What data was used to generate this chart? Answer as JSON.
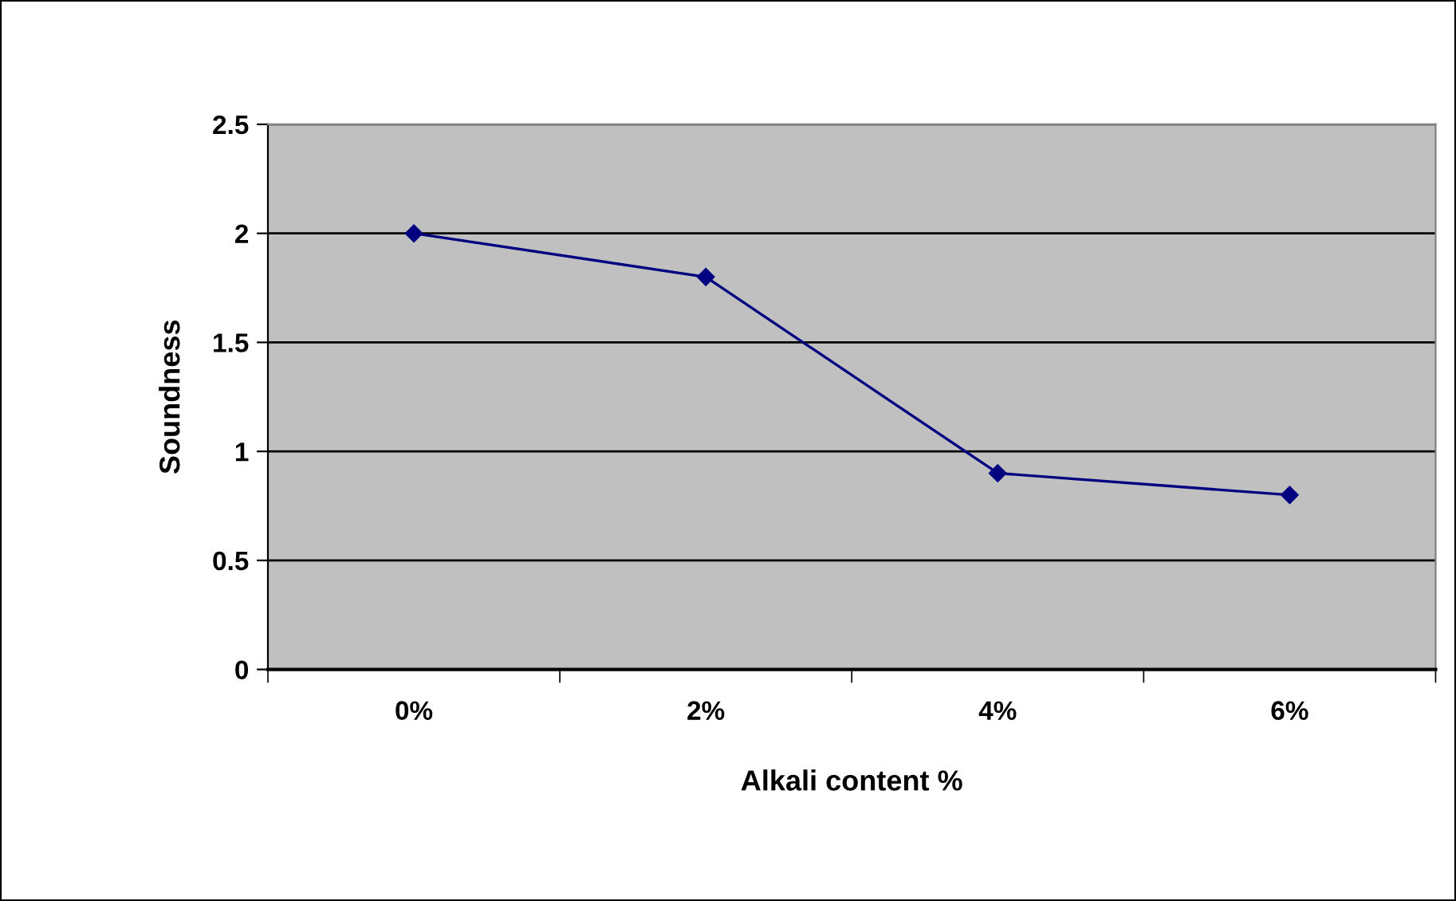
{
  "chart_data": {
    "type": "line",
    "xlabel": "Alkali content %",
    "ylabel": "Soundness",
    "categories": [
      "0%",
      "2%",
      "4%",
      "6%"
    ],
    "series": [
      {
        "color": "#000080",
        "values": [
          2,
          1.8,
          0.9,
          0.8
        ]
      }
    ],
    "ylim": [
      0,
      2.5
    ],
    "yticks": [
      0,
      0.5,
      1,
      1.5,
      2,
      2.5
    ],
    "grid": "y",
    "marker": "diamond",
    "line_style": "solid",
    "legend": false
  }
}
